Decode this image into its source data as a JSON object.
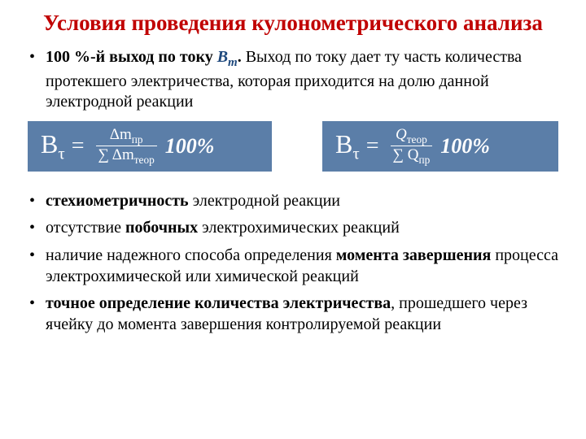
{
  "title": "Условия проведения кулонометрического анализа",
  "bullets_top": {
    "b1": {
      "pre_bold": "100 %-й выход по току ",
      "var": "В",
      "sub": "т",
      "post_bold": ".",
      "rest": " Выход по току дает ту часть количества протекшего электричества, которая приходится на долю данной электродной реакции"
    }
  },
  "formulas": {
    "left": {
      "lhs_sym": "В",
      "lhs_sub": "τ",
      "eq": "=",
      "num": "Δmₚᵣ",
      "num_main": "Δm",
      "num_sub": "пр",
      "den_pre": "∑ Δm",
      "den_sub": "теор",
      "tail": "100%"
    },
    "right": {
      "lhs_sym": "В",
      "lhs_sub": "τ",
      "eq": "=",
      "num_main": "Q",
      "num_sub": "теор",
      "den_pre": "∑ Q",
      "den_sub": "пр",
      "tail": "100%"
    }
  },
  "bullets_bottom": {
    "b2_bold": "стехиометричность",
    "b2_rest": " электродной реакции",
    "b3_pre": "отсутствие ",
    "b3_bold": "побочных",
    "b3_rest": " электрохимических реакций",
    "b4_pre": "наличие надежного способа определения ",
    "b4_bold": "момента завершения",
    "b4_rest": " процесса электрохимической или химической реакций",
    "b5_bold": "точное определение количества электричества",
    "b5_rest": ", прошедшего через ячейку до момента завершения контролируемой реакции"
  },
  "colors": {
    "title": "#c00000",
    "formula_bg": "#5b7ea8",
    "formula_fg": "#ffffff",
    "var_color": "#1f497d",
    "text": "#000000",
    "background": "#ffffff"
  }
}
